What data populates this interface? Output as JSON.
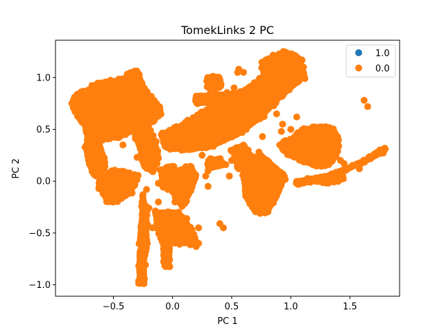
{
  "chart_data": {
    "type": "scatter",
    "title": "TomekLinks 2 PC",
    "xlabel": "PC 1",
    "ylabel": "PC 2",
    "xlim": [
      -0.99,
      1.92
    ],
    "ylim": [
      -1.11,
      1.36
    ],
    "xticks": [
      -0.5,
      0.0,
      0.5,
      1.0,
      1.5
    ],
    "xtick_labels": [
      "−0.5",
      "0.0",
      "0.5",
      "1.0",
      "1.5"
    ],
    "yticks": [
      -1.0,
      -0.5,
      0.0,
      0.5,
      1.0
    ],
    "ytick_labels": [
      "−1.0",
      "−0.5",
      "0.0",
      "0.5",
      "1.0"
    ],
    "grid": false,
    "legend_position": "top-right",
    "series": [
      {
        "name": "1.0",
        "color": "#1f77b4",
        "points": []
      },
      {
        "name": "0.0",
        "color": "#ff7f0e",
        "clusters": [
          {
            "shape": "poly",
            "pts": [
              [
                -0.85,
                0.74
              ],
              [
                -0.8,
                0.84
              ],
              [
                -0.72,
                0.87
              ],
              [
                -0.63,
                0.95
              ],
              [
                -0.45,
                0.97
              ],
              [
                -0.3,
                1.07
              ],
              [
                -0.25,
                0.92
              ],
              [
                -0.18,
                0.79
              ],
              [
                -0.12,
                0.73
              ],
              [
                -0.1,
                0.65
              ],
              [
                -0.2,
                0.55
              ],
              [
                -0.3,
                0.5
              ],
              [
                -0.45,
                0.43
              ],
              [
                -0.55,
                0.42
              ],
              [
                -0.65,
                0.38
              ],
              [
                -0.7,
                0.42
              ],
              [
                -0.75,
                0.55
              ],
              [
                -0.8,
                0.63
              ]
            ],
            "n": 230
          },
          {
            "shape": "poly",
            "pts": [
              [
                -0.72,
                0.42
              ],
              [
                -0.65,
                0.41
              ],
              [
                -0.6,
                0.3
              ],
              [
                -0.58,
                0.15
              ],
              [
                -0.6,
                0.05
              ],
              [
                -0.65,
                0.05
              ],
              [
                -0.7,
                0.15
              ],
              [
                -0.73,
                0.3
              ]
            ],
            "n": 60
          },
          {
            "shape": "poly",
            "pts": [
              [
                -0.3,
                0.55
              ],
              [
                -0.2,
                0.5
              ],
              [
                -0.15,
                0.38
              ],
              [
                -0.12,
                0.22
              ],
              [
                -0.17,
                0.1
              ],
              [
                -0.23,
                0.15
              ],
              [
                -0.27,
                0.3
              ],
              [
                -0.32,
                0.45
              ]
            ],
            "n": 55
          },
          {
            "shape": "poly",
            "pts": [
              [
                -0.6,
                0.05
              ],
              [
                -0.5,
                0.1
              ],
              [
                -0.4,
                0.08
              ],
              [
                -0.3,
                0.05
              ],
              [
                -0.35,
                -0.1
              ],
              [
                -0.45,
                -0.18
              ],
              [
                -0.55,
                -0.2
              ],
              [
                -0.62,
                -0.05
              ]
            ],
            "n": 45
          },
          {
            "shape": "poly",
            "pts": [
              [
                -0.28,
                -0.68
              ],
              [
                -0.24,
                -0.7
              ],
              [
                -0.24,
                -0.98
              ],
              [
                -0.28,
                -0.98
              ]
            ],
            "n": 45
          },
          {
            "shape": "poly",
            "pts": [
              [
                -0.25,
                -0.15
              ],
              [
                -0.22,
                -0.3
              ],
              [
                -0.22,
                -0.6
              ],
              [
                -0.24,
                -0.7
              ],
              [
                -0.28,
                -0.6
              ],
              [
                -0.26,
                -0.35
              ]
            ],
            "n": 25
          },
          {
            "shape": "poly",
            "pts": [
              [
                -0.05,
                -0.4
              ],
              [
                -0.02,
                -0.42
              ],
              [
                -0.03,
                -0.82
              ],
              [
                -0.07,
                -0.82
              ],
              [
                -0.08,
                -0.6
              ]
            ],
            "n": 35
          },
          {
            "shape": "poly",
            "pts": [
              [
                -0.15,
                -0.3
              ],
              [
                0.05,
                -0.3
              ],
              [
                0.15,
                -0.45
              ],
              [
                0.2,
                -0.6
              ],
              [
                0.05,
                -0.6
              ],
              [
                -0.1,
                -0.55
              ]
            ],
            "n": 35
          },
          {
            "shape": "poly",
            "pts": [
              [
                -0.1,
                0.45
              ],
              [
                0.1,
                0.55
              ],
              [
                0.3,
                0.7
              ],
              [
                0.5,
                0.8
              ],
              [
                0.7,
                0.95
              ],
              [
                0.85,
                1.1
              ],
              [
                1.0,
                1.2
              ],
              [
                1.1,
                1.08
              ],
              [
                1.05,
                0.95
              ],
              [
                0.9,
                0.8
              ],
              [
                0.75,
                0.62
              ],
              [
                0.55,
                0.45
              ],
              [
                0.35,
                0.35
              ],
              [
                0.15,
                0.3
              ],
              [
                -0.05,
                0.32
              ]
            ],
            "n": 210
          },
          {
            "shape": "poly",
            "pts": [
              [
                0.75,
                1.15
              ],
              [
                0.95,
                1.25
              ],
              [
                1.08,
                1.18
              ],
              [
                1.12,
                1.0
              ],
              [
                0.95,
                0.95
              ],
              [
                0.8,
                1.0
              ]
            ],
            "n": 70
          },
          {
            "shape": "poly",
            "pts": [
              [
                0.2,
                0.82
              ],
              [
                0.55,
                0.85
              ],
              [
                0.55,
                0.78
              ],
              [
                0.2,
                0.75
              ]
            ],
            "n": 30
          },
          {
            "shape": "poly",
            "pts": [
              [
                0.05,
                0.1
              ],
              [
                0.15,
                0.15
              ],
              [
                0.2,
                0.05
              ],
              [
                0.15,
                -0.1
              ],
              [
                0.08,
                -0.25
              ],
              [
                0.0,
                -0.1
              ]
            ],
            "n": 40
          },
          {
            "shape": "poly",
            "pts": [
              [
                -0.1,
                0.1
              ],
              [
                0.0,
                0.15
              ],
              [
                0.05,
                0.05
              ],
              [
                0.0,
                -0.05
              ],
              [
                -0.08,
                -0.05
              ]
            ],
            "n": 15
          },
          {
            "shape": "poly",
            "pts": [
              [
                0.6,
                0.2
              ],
              [
                0.75,
                0.25
              ],
              [
                0.85,
                0.15
              ],
              [
                0.95,
                0.05
              ],
              [
                0.9,
                -0.1
              ],
              [
                0.8,
                -0.3
              ],
              [
                0.7,
                -0.3
              ],
              [
                0.62,
                -0.15
              ],
              [
                0.6,
                0.05
              ]
            ],
            "n": 100
          },
          {
            "shape": "poly",
            "pts": [
              [
                0.55,
                0.18
              ],
              [
                0.7,
                0.2
              ],
              [
                0.7,
                0.14
              ],
              [
                0.55,
                0.14
              ]
            ],
            "n": 15
          },
          {
            "shape": "poly",
            "pts": [
              [
                0.9,
                0.35
              ],
              [
                1.0,
                0.4
              ],
              [
                1.1,
                0.5
              ],
              [
                1.25,
                0.52
              ],
              [
                1.35,
                0.5
              ],
              [
                1.4,
                0.4
              ],
              [
                1.38,
                0.25
              ],
              [
                1.3,
                0.15
              ],
              [
                1.2,
                0.15
              ],
              [
                1.1,
                0.2
              ],
              [
                1.0,
                0.25
              ]
            ],
            "n": 90
          },
          {
            "shape": "poly",
            "pts": [
              [
                1.05,
                0.0
              ],
              [
                1.3,
                0.05
              ],
              [
                1.5,
                0.13
              ],
              [
                1.65,
                0.22
              ],
              [
                1.8,
                0.32
              ],
              [
                1.78,
                0.28
              ],
              [
                1.6,
                0.18
              ],
              [
                1.4,
                0.07
              ],
              [
                1.2,
                0.0
              ],
              [
                1.05,
                -0.03
              ]
            ],
            "n": 90
          },
          {
            "shape": "poly",
            "pts": [
              [
                1.2,
                0.0
              ],
              [
                1.4,
                0.08
              ],
              [
                1.45,
                0.02
              ],
              [
                1.3,
                -0.02
              ]
            ],
            "n": 15
          },
          {
            "shape": "poly",
            "pts": [
              [
                0.3,
                1.0
              ],
              [
                0.4,
                1.0
              ],
              [
                0.4,
                0.9
              ],
              [
                0.3,
                0.9
              ]
            ],
            "n": 6
          },
          {
            "shape": "poly",
            "pts": [
              [
                0.5,
                0.3
              ],
              [
                0.6,
                0.35
              ],
              [
                0.65,
                0.25
              ],
              [
                0.55,
                0.2
              ]
            ],
            "n": 10
          },
          {
            "shape": "poly",
            "pts": [
              [
                0.3,
                0.2
              ],
              [
                0.4,
                0.22
              ],
              [
                0.42,
                0.15
              ],
              [
                0.3,
                0.12
              ]
            ],
            "n": 6
          }
        ],
        "extra_points": [
          [
            -0.55,
            0.05
          ],
          [
            -0.42,
            0.35
          ],
          [
            -0.3,
            0.23
          ],
          [
            -0.24,
            0.18
          ],
          [
            -0.22,
            -0.08
          ],
          [
            -0.25,
            -0.13
          ],
          [
            -0.12,
            -0.2
          ],
          [
            -0.04,
            -0.08
          ],
          [
            -0.2,
            -0.26
          ],
          [
            0.1,
            -0.55
          ],
          [
            0.2,
            -0.63
          ],
          [
            0.22,
            -0.6
          ],
          [
            0.22,
            -0.45
          ],
          [
            0.4,
            -0.41
          ],
          [
            0.43,
            -0.45
          ],
          [
            0.25,
            0.25
          ],
          [
            0.3,
            0.1
          ],
          [
            0.28,
            0.05
          ],
          [
            0.42,
            0.18
          ],
          [
            0.45,
            0.16
          ],
          [
            0.56,
            1.08
          ],
          [
            0.55,
            1.05
          ],
          [
            0.52,
            0.9
          ],
          [
            0.59,
            0.28
          ],
          [
            0.64,
            0.3
          ],
          [
            0.58,
            0.31
          ],
          [
            0.75,
            -0.15
          ],
          [
            0.73,
            0.28
          ],
          [
            0.76,
            0.43
          ],
          [
            0.93,
            0.55
          ],
          [
            0.92,
            0.48
          ],
          [
            1.0,
            0.5
          ],
          [
            1.1,
            0.45
          ],
          [
            1.33,
            0.5
          ],
          [
            1.36,
            0.45
          ],
          [
            1.42,
            0.2
          ],
          [
            1.45,
            0.17
          ],
          [
            1.58,
            0.12
          ],
          [
            1.62,
            0.78
          ],
          [
            1.65,
            0.72
          ],
          [
            -0.17,
            -0.45
          ],
          [
            -0.12,
            -0.02
          ],
          [
            -0.08,
            0.02
          ],
          [
            0.02,
            -0.2
          ],
          [
            0.06,
            -0.33
          ],
          [
            0.12,
            -0.36
          ],
          [
            0.3,
            -0.05
          ],
          [
            0.48,
            0.05
          ],
          [
            0.5,
            0.2
          ],
          [
            0.56,
            0.12
          ],
          [
            0.72,
            0.95
          ],
          [
            0.6,
            1.05
          ],
          [
            0.85,
            0.75
          ],
          [
            0.88,
            0.65
          ],
          [
            1.05,
            0.62
          ],
          [
            1.15,
            0.22
          ],
          [
            1.22,
            0.43
          ],
          [
            1.28,
            0.47
          ]
        ]
      }
    ]
  }
}
